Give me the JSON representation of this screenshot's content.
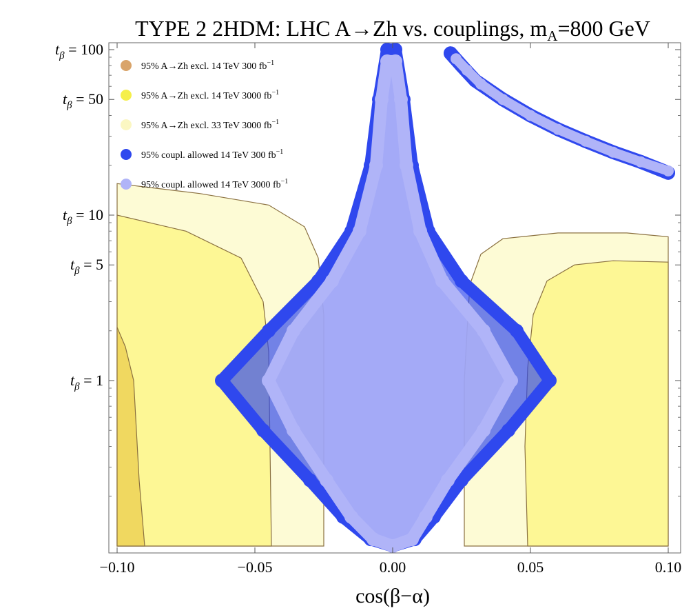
{
  "chart_data": {
    "type": "scatter",
    "title_main": "TYPE 2 2HDM: LHC A→Zh vs. couplings, m",
    "title_sub": "A",
    "title_tail": "=800 GeV",
    "xlabel": "cos(β−α)",
    "xlim": [
      -0.1,
      0.1
    ],
    "ylim_log10": [
      -1.0,
      2.0
    ],
    "y_scale": "log",
    "x_ticks": [
      {
        "value": -0.1,
        "label": "−0.10"
      },
      {
        "value": -0.05,
        "label": "−0.05"
      },
      {
        "value": 0.0,
        "label": "0.00"
      },
      {
        "value": 0.05,
        "label": "0.05"
      },
      {
        "value": 0.1,
        "label": "0.10"
      }
    ],
    "y_ticks": [
      {
        "value": 100,
        "prefix": "t",
        "sub": "β",
        "suffix": " = 100"
      },
      {
        "value": 50,
        "prefix": "t",
        "sub": "β",
        "suffix": " = 50"
      },
      {
        "value": 10,
        "prefix": "t",
        "sub": "β",
        "suffix": " = 10"
      },
      {
        "value": 5,
        "prefix": "t",
        "sub": "β",
        "suffix": " = 5"
      },
      {
        "value": 1,
        "prefix": "t",
        "sub": "β",
        "suffix": " = 1"
      }
    ],
    "legend": [
      {
        "text": "95% A→Zh excl. 14 TeV 300 fb",
        "sup": "−1",
        "color": "#d9a46a"
      },
      {
        "text": "95% A→Zh excl. 14 TeV 3000 fb",
        "sup": "−1",
        "color": "#f5ef4a"
      },
      {
        "text": "95% A→Zh excl. 33 TeV 3000 fb",
        "sup": "−1",
        "color": "#fbf7c2"
      },
      {
        "text": "95% coupl. allowed 14 TeV 300 fb",
        "sup": "−1",
        "color": "#2f48ee"
      },
      {
        "text": "95% coupl. allowed 14 TeV 3000 fb",
        "sup": "−1",
        "color": "#b0b4f8"
      }
    ],
    "exclusion_regions": [
      {
        "name": "excl-33tev-3000-left",
        "color": "#fdfbd0",
        "opacity": 0.9,
        "points": [
          [
            -0.1,
            0.1
          ],
          [
            -0.1,
            15.5
          ],
          [
            -0.07,
            13.5
          ],
          [
            -0.045,
            11.5
          ],
          [
            -0.032,
            8.5
          ],
          [
            -0.027,
            5.5
          ],
          [
            -0.025,
            2.5
          ],
          [
            -0.025,
            0.1
          ]
        ]
      },
      {
        "name": "excl-14tev-3000-left",
        "color": "#fdf68e",
        "opacity": 0.9,
        "points": [
          [
            -0.1,
            0.1
          ],
          [
            -0.1,
            10.0
          ],
          [
            -0.075,
            8.0
          ],
          [
            -0.055,
            5.5
          ],
          [
            -0.047,
            3.0
          ],
          [
            -0.045,
            1.5
          ],
          [
            -0.044,
            0.1
          ]
        ]
      },
      {
        "name": "excl-14tev-300-left",
        "color": "#f0d860",
        "opacity": 1.0,
        "points": [
          [
            -0.1,
            0.1
          ],
          [
            -0.1,
            2.1
          ],
          [
            -0.097,
            1.6
          ],
          [
            -0.094,
            1.0
          ],
          [
            -0.093,
            0.5
          ],
          [
            -0.092,
            0.25
          ],
          [
            -0.09,
            0.1
          ]
        ]
      },
      {
        "name": "excl-33tev-3000-right",
        "color": "#fdfbd0",
        "opacity": 0.9,
        "points": [
          [
            0.1,
            0.1
          ],
          [
            0.1,
            7.4
          ],
          [
            0.085,
            7.8
          ],
          [
            0.06,
            7.8
          ],
          [
            0.04,
            7.2
          ],
          [
            0.032,
            5.8
          ],
          [
            0.028,
            3.8
          ],
          [
            0.027,
            2.0
          ],
          [
            0.026,
            1.0
          ],
          [
            0.026,
            0.1
          ]
        ]
      },
      {
        "name": "excl-14tev-3000-right",
        "color": "#fdf68e",
        "opacity": 0.9,
        "points": [
          [
            0.1,
            0.1
          ],
          [
            0.1,
            5.2
          ],
          [
            0.08,
            5.3
          ],
          [
            0.066,
            5.0
          ],
          [
            0.056,
            4.0
          ],
          [
            0.051,
            2.5
          ],
          [
            0.049,
            1.2
          ],
          [
            0.048,
            0.4
          ],
          [
            0.049,
            0.1
          ]
        ]
      }
    ],
    "coupling_regions": [
      {
        "name": "coupl-14tev-300-central",
        "color": "#2f48ee",
        "marker": "large",
        "points": [
          [
            0.0,
            0.1
          ],
          [
            0.008,
            0.11
          ],
          [
            0.015,
            0.15
          ],
          [
            0.025,
            0.25
          ],
          [
            0.042,
            0.5
          ],
          [
            0.057,
            1.0
          ],
          [
            0.045,
            2.0
          ],
          [
            0.025,
            4.0
          ],
          [
            0.013,
            8.0
          ],
          [
            0.007,
            20.0
          ],
          [
            0.004,
            50.0
          ],
          [
            0.001,
            100.0
          ],
          [
            -0.002,
            100.0
          ],
          [
            -0.005,
            50.0
          ],
          [
            -0.008,
            20.0
          ],
          [
            -0.015,
            8.0
          ],
          [
            -0.027,
            4.0
          ],
          [
            -0.045,
            2.0
          ],
          [
            -0.062,
            1.0
          ],
          [
            -0.047,
            0.5
          ],
          [
            -0.03,
            0.25
          ],
          [
            -0.018,
            0.15
          ],
          [
            -0.008,
            0.11
          ]
        ]
      },
      {
        "name": "coupl-14tev-3000-central",
        "color": "#b0b4f8",
        "marker": "large",
        "points": [
          [
            0.0,
            0.1
          ],
          [
            0.007,
            0.11
          ],
          [
            0.012,
            0.15
          ],
          [
            0.02,
            0.25
          ],
          [
            0.033,
            0.5
          ],
          [
            0.043,
            1.0
          ],
          [
            0.033,
            2.0
          ],
          [
            0.018,
            4.0
          ],
          [
            0.01,
            8.0
          ],
          [
            0.005,
            20.0
          ],
          [
            0.003,
            50.0
          ],
          [
            0.001,
            85.0
          ],
          [
            -0.002,
            85.0
          ],
          [
            -0.004,
            50.0
          ],
          [
            -0.006,
            20.0
          ],
          [
            -0.012,
            8.0
          ],
          [
            -0.022,
            4.0
          ],
          [
            -0.036,
            2.0
          ],
          [
            -0.045,
            1.0
          ],
          [
            -0.036,
            0.5
          ],
          [
            -0.024,
            0.25
          ],
          [
            -0.015,
            0.15
          ],
          [
            -0.007,
            0.11
          ]
        ]
      },
      {
        "name": "coupl-14tev-300-upper-branch",
        "color": "#2f48ee",
        "marker": "large",
        "points": [
          [
            0.021,
            95.0
          ],
          [
            0.025,
            80.0
          ],
          [
            0.03,
            65.0
          ],
          [
            0.04,
            50.0
          ],
          [
            0.05,
            40.0
          ],
          [
            0.06,
            33.0
          ],
          [
            0.07,
            28.0
          ],
          [
            0.08,
            24.0
          ],
          [
            0.09,
            21.0
          ],
          [
            0.1,
            18.0
          ]
        ]
      },
      {
        "name": "coupl-14tev-3000-upper-branch",
        "color": "#b0b4f8",
        "marker": "small",
        "points": [
          [
            0.023,
            88.0
          ],
          [
            0.027,
            75.0
          ],
          [
            0.032,
            62.0
          ],
          [
            0.04,
            50.0
          ],
          [
            0.05,
            40.0
          ],
          [
            0.06,
            33.0
          ],
          [
            0.07,
            28.0
          ],
          [
            0.08,
            24.0
          ],
          [
            0.09,
            21.0
          ],
          [
            0.1,
            18.5
          ]
        ]
      }
    ]
  }
}
